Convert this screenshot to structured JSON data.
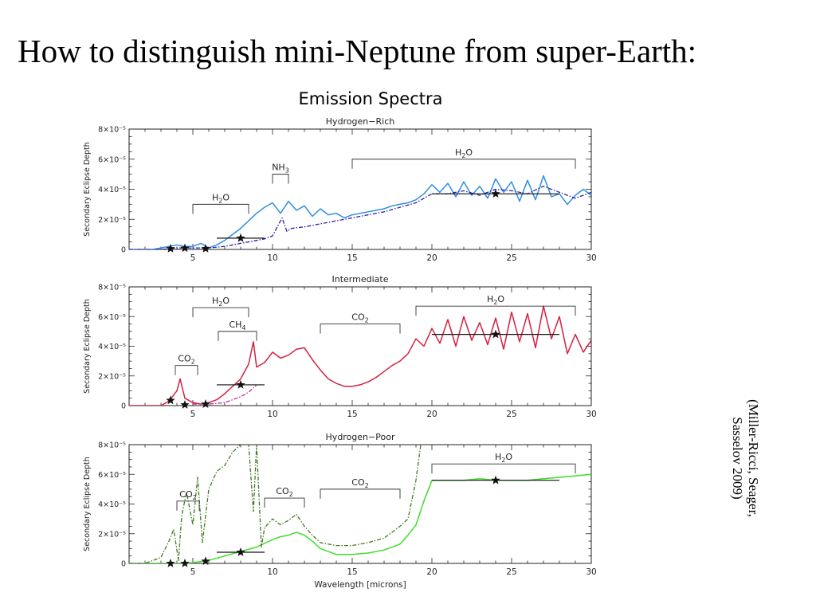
{
  "slide": {
    "title": "How to distinguish mini-Neptune from super-Earth:",
    "figure_title": "Emission Spectra",
    "citation_line1": "(Miller-Ricci, Seager,",
    "citation_line2": "Sasselov  2009)"
  },
  "chart_data": [
    {
      "type": "line",
      "title": "Hydrogen−Rich",
      "ylabel": "Secondary Eclipse Depth",
      "xlabel": "",
      "xlim": [
        1,
        30
      ],
      "ylim": [
        0,
        8e-05
      ],
      "x_ticks": [
        5,
        10,
        15,
        20,
        25,
        30
      ],
      "y_ticks": [
        {
          "value": 0,
          "label": "0"
        },
        {
          "value": 2e-05,
          "label": "2×10⁻⁵"
        },
        {
          "value": 4e-05,
          "label": "4×10⁻⁵"
        },
        {
          "value": 6e-05,
          "label": "6×10⁻⁵"
        },
        {
          "value": 8e-05,
          "label": "8×10⁻⁵"
        }
      ],
      "colors": {
        "primary": "#2e8fe0",
        "secondary": "#2a1fa8"
      },
      "series": [
        {
          "style": "solid",
          "color": "#2e8fe0",
          "x": [
            1.0,
            1.5,
            2.0,
            2.5,
            3.0,
            3.5,
            4.0,
            4.5,
            5.0,
            5.5,
            6.0,
            6.5,
            7.0,
            7.5,
            8.0,
            8.5,
            9.0,
            9.5,
            10.0,
            10.5,
            11.0,
            11.5,
            12.0,
            12.5,
            13.0,
            13.5,
            14.0,
            14.5,
            15.0,
            15.5,
            16.0,
            16.5,
            17.0,
            17.5,
            18.0,
            18.5,
            19.0,
            19.5,
            20.0,
            20.5,
            21.0,
            21.5,
            22.0,
            22.5,
            23.0,
            23.5,
            24.0,
            24.5,
            25.0,
            25.5,
            26.0,
            26.5,
            27.0,
            27.5,
            28.0,
            28.5,
            29.0,
            29.5,
            30.0
          ],
          "y": [
            0,
            0,
            0,
            0,
            1e-06,
            2e-06,
            3e-06,
            2e-06,
            2e-06,
            4e-06,
            1e-06,
            3e-06,
            6e-06,
            1e-05,
            1.4e-05,
            1.9e-05,
            2.4e-05,
            2.8e-05,
            3.1e-05,
            2.4e-05,
            3.2e-05,
            2.6e-05,
            2.9e-05,
            2.2e-05,
            2.7e-05,
            2.3e-05,
            2.4e-05,
            2.1e-05,
            2.3e-05,
            2.4e-05,
            2.5e-05,
            2.6e-05,
            2.7e-05,
            2.9e-05,
            3e-05,
            3.1e-05,
            3.3e-05,
            3.7e-05,
            4.3e-05,
            3.8e-05,
            4.4e-05,
            3.5e-05,
            4.5e-05,
            3.6e-05,
            4.2e-05,
            3.4e-05,
            4.7e-05,
            3.8e-05,
            4.5e-05,
            3.2e-05,
            4.6e-05,
            3.3e-05,
            4.9e-05,
            3.5e-05,
            3.7e-05,
            3e-05,
            3.6e-05,
            4e-05,
            3.6e-05
          ]
        },
        {
          "style": "dashdot",
          "color": "#2a1fa8",
          "x": [
            1.0,
            2.0,
            3.0,
            4.0,
            5.0,
            6.0,
            7.0,
            8.0,
            9.0,
            9.5,
            10.0,
            10.3,
            10.6,
            10.9,
            11.2,
            12.0,
            13.0,
            14.0,
            15.0,
            16.0,
            17.0,
            18.0,
            19.0,
            20.0,
            21.0,
            22.0,
            23.0,
            24.0,
            25.0,
            26.0,
            27.0,
            28.0,
            29.0,
            30.0
          ],
          "y": [
            0,
            0,
            0,
            1e-06,
            1e-06,
            1e-06,
            2e-06,
            4e-06,
            6e-06,
            7e-06,
            9e-06,
            1.5e-05,
            2.1e-05,
            1.2e-05,
            1.4e-05,
            1.5e-05,
            1.7e-05,
            1.9e-05,
            2.1e-05,
            2.3e-05,
            2.5e-05,
            2.8e-05,
            3.1e-05,
            3.7e-05,
            3.7e-05,
            3.9e-05,
            3.6e-05,
            4e-05,
            3.9e-05,
            3.7e-05,
            4.2e-05,
            3.8e-05,
            3.4e-05,
            3.8e-05
          ]
        }
      ],
      "binned_points": [
        {
          "x": 3.6,
          "y": 5e-07,
          "xerr": 0
        },
        {
          "x": 4.5,
          "y": 8e-07,
          "xerr": 0
        },
        {
          "x": 5.8,
          "y": 5e-07,
          "xerr": 0
        },
        {
          "x": 8.0,
          "y": 7.5e-06,
          "xerr": 1.5
        },
        {
          "x": 24.0,
          "y": 3.7e-05,
          "xerr": 4.0
        }
      ],
      "annotations": [
        {
          "base": "H",
          "sub": "2",
          "tail": "O",
          "x1": 5,
          "x2": 8.5,
          "y": 3e-05
        },
        {
          "base": "NH",
          "sub": "3",
          "tail": "",
          "x1": 10,
          "x2": 11,
          "y": 5e-05
        },
        {
          "base": "H",
          "sub": "2",
          "tail": "O",
          "x1": 15,
          "x2": 29,
          "y": 6e-05
        }
      ]
    },
    {
      "type": "line",
      "title": "Intermediate",
      "ylabel": "Secondary Eclipse Depth",
      "xlabel": "",
      "xlim": [
        1,
        30
      ],
      "ylim": [
        0,
        8e-05
      ],
      "x_ticks": [
        5,
        10,
        15,
        20,
        25,
        30
      ],
      "y_ticks": [
        {
          "value": 0,
          "label": "0"
        },
        {
          "value": 2e-05,
          "label": "2×10⁻⁵"
        },
        {
          "value": 4e-05,
          "label": "4×10⁻⁵"
        },
        {
          "value": 6e-05,
          "label": "6×10⁻⁵"
        },
        {
          "value": 8e-05,
          "label": "8×10⁻⁵"
        }
      ],
      "colors": {
        "primary": "#d4203f",
        "secondary": "#c02aa8"
      },
      "series": [
        {
          "style": "solid",
          "color": "#d4203f",
          "x": [
            1.0,
            2.0,
            3.0,
            3.5,
            4.0,
            4.2,
            4.5,
            5.0,
            5.5,
            6.0,
            6.5,
            7.0,
            7.5,
            8.0,
            8.5,
            8.8,
            9.0,
            9.5,
            10.0,
            10.5,
            11.0,
            11.5,
            12.0,
            12.5,
            13.0,
            13.5,
            14.0,
            14.5,
            15.0,
            15.5,
            16.0,
            16.5,
            17.0,
            17.5,
            18.0,
            18.5,
            19.0,
            19.5,
            20.0,
            20.5,
            21.0,
            21.5,
            22.0,
            22.5,
            23.0,
            23.5,
            24.0,
            24.5,
            25.0,
            25.5,
            26.0,
            26.5,
            27.0,
            27.5,
            28.0,
            28.5,
            29.0,
            29.5,
            30.0
          ],
          "y": [
            0,
            0,
            0,
            3e-06,
            1e-05,
            1.8e-05,
            5e-06,
            2e-06,
            1e-06,
            2e-06,
            4e-06,
            8e-06,
            1.3e-05,
            1.8e-05,
            2.8e-05,
            4.3e-05,
            2.6e-05,
            2.9e-05,
            3.6e-05,
            3.2e-05,
            3.4e-05,
            3.8e-05,
            3.9e-05,
            3.1e-05,
            2.4e-05,
            1.8e-05,
            1.5e-05,
            1.3e-05,
            1.3e-05,
            1.4e-05,
            1.6e-05,
            1.9e-05,
            2.3e-05,
            2.7e-05,
            3e-05,
            3.5e-05,
            4.5e-05,
            4e-05,
            5.2e-05,
            4.2e-05,
            5.8e-05,
            4e-05,
            6e-05,
            4.4e-05,
            5.6e-05,
            4.1e-05,
            5.9e-05,
            3.8e-05,
            6.3e-05,
            4.3e-05,
            6.2e-05,
            3.9e-05,
            6.7e-05,
            4.5e-05,
            6e-05,
            3.5e-05,
            4.8e-05,
            3.6e-05,
            4.4e-05
          ]
        },
        {
          "style": "dashdot",
          "color": "#c02aa8",
          "x": [
            5.0,
            6.0,
            7.0,
            7.5,
            8.0,
            8.5,
            8.8,
            9.0
          ],
          "y": [
            1e-06,
            1e-06,
            2e-06,
            4e-06,
            6e-06,
            9e-06,
            1.2e-05,
            1.4e-05
          ]
        }
      ],
      "binned_points": [
        {
          "x": 3.6,
          "y": 3.5e-06,
          "xerr": 0
        },
        {
          "x": 4.5,
          "y": 5e-07,
          "xerr": 0
        },
        {
          "x": 5.8,
          "y": 1e-06,
          "xerr": 0
        },
        {
          "x": 8.0,
          "y": 1.4e-05,
          "xerr": 1.5
        },
        {
          "x": 24.0,
          "y": 4.8e-05,
          "xerr": 4.0
        }
      ],
      "annotations": [
        {
          "base": "CO",
          "sub": "2",
          "tail": "",
          "x1": 3.9,
          "x2": 5.3,
          "y": 2.7e-05
        },
        {
          "base": "H",
          "sub": "2",
          "tail": "O",
          "x1": 5,
          "x2": 8.5,
          "y": 6.6e-05
        },
        {
          "base": "CH",
          "sub": "4",
          "tail": "",
          "x1": 6.6,
          "x2": 9,
          "y": 5e-05
        },
        {
          "base": "CO",
          "sub": "2",
          "tail": "",
          "x1": 13,
          "x2": 18,
          "y": 5.5e-05
        },
        {
          "base": "H",
          "sub": "2",
          "tail": "O",
          "x1": 19,
          "x2": 29,
          "y": 6.7e-05
        }
      ]
    },
    {
      "type": "line",
      "title": "Hydrogen−Poor",
      "ylabel": "Secondary Eclipse Depth",
      "xlabel": "Wavelength [microns]",
      "xlim": [
        1,
        30
      ],
      "ylim": [
        0,
        8e-05
      ],
      "x_ticks": [
        5,
        10,
        15,
        20,
        25,
        30
      ],
      "y_ticks": [
        {
          "value": 0,
          "label": "0"
        },
        {
          "value": 2e-05,
          "label": "2×10⁻⁵"
        },
        {
          "value": 4e-05,
          "label": "4×10⁻⁵"
        },
        {
          "value": 6e-05,
          "label": "6×10⁻⁵"
        },
        {
          "value": 8e-05,
          "label": "8×10⁻⁵"
        }
      ],
      "colors": {
        "primary": "#3fdc2a",
        "secondary": "#3f7a1f"
      },
      "series": [
        {
          "style": "solid",
          "color": "#3fdc2a",
          "x": [
            1.0,
            2.0,
            3.0,
            4.0,
            5.0,
            6.0,
            7.0,
            8.0,
            9.0,
            10.0,
            10.5,
            11.0,
            11.5,
            12.0,
            12.5,
            13.0,
            13.5,
            14.0,
            15.0,
            16.0,
            17.0,
            18.0,
            18.5,
            19.0,
            19.5,
            20.0,
            21.0,
            22.0,
            23.0,
            24.0,
            25.0,
            26.0,
            27.0,
            28.0,
            29.0,
            30.0
          ],
          "y": [
            0,
            0,
            0,
            0,
            5e-07,
            2e-06,
            5e-06,
            8e-06,
            1.1e-05,
            1.6e-05,
            1.8e-05,
            1.9e-05,
            2.1e-05,
            1.9e-05,
            1.5e-05,
            1e-05,
            8e-06,
            6e-06,
            6e-06,
            7e-06,
            9e-06,
            1.3e-05,
            1.9e-05,
            2.6e-05,
            4.2e-05,
            5.6e-05,
            5.6e-05,
            5.6e-05,
            5.7e-05,
            5.6e-05,
            5.6e-05,
            5.6e-05,
            5.7e-05,
            5.8e-05,
            5.9e-05,
            6e-05
          ]
        },
        {
          "style": "dashdot",
          "color": "#3f7a1f",
          "x": [
            1.0,
            2.0,
            3.0,
            3.5,
            3.8,
            4.1,
            4.3,
            4.6,
            5.0,
            5.3,
            5.6,
            6.0,
            6.5,
            7.0,
            7.5,
            8.0,
            8.5,
            8.8,
            9.0,
            9.3,
            9.5,
            10.0,
            10.5,
            11.0,
            11.5,
            12.0,
            12.5,
            13.0,
            14.0,
            15.0,
            16.0,
            17.0,
            18.0,
            18.5,
            19.0,
            19.3
          ],
          "y": [
            0,
            0,
            4e-06,
            1.5e-05,
            2.3e-05,
            2e-06,
            3.2e-05,
            4.8e-05,
            2.6e-05,
            5.8e-05,
            1.4e-05,
            5e-05,
            6.2e-05,
            6.6e-05,
            7.5e-05,
            8e-05,
            8e-05,
            3.5e-05,
            8e-05,
            1.1e-05,
            2.4e-05,
            3e-05,
            2.6e-05,
            2.9e-05,
            3.3e-05,
            2.5e-05,
            1.9e-05,
            1.4e-05,
            1.2e-05,
            1.2e-05,
            1.4e-05,
            1.7e-05,
            2.5e-05,
            3e-05,
            5.6e-05,
            8e-05
          ]
        }
      ],
      "binned_points": [
        {
          "x": 3.6,
          "y": 0.0,
          "xerr": 0
        },
        {
          "x": 4.5,
          "y": 0.0,
          "xerr": 0
        },
        {
          "x": 5.8,
          "y": 1.5e-06,
          "xerr": 0
        },
        {
          "x": 8.0,
          "y": 7.5e-06,
          "xerr": 1.5
        },
        {
          "x": 24.0,
          "y": 5.6e-05,
          "xerr": 4.0
        }
      ],
      "annotations": [
        {
          "base": "CO",
          "sub": "2",
          "tail": "",
          "x1": 4,
          "x2": 5.4,
          "y": 4.2e-05
        },
        {
          "base": "CO",
          "sub": "2",
          "tail": "",
          "x1": 9.5,
          "x2": 12,
          "y": 4.4e-05
        },
        {
          "base": "CO",
          "sub": "2",
          "tail": "",
          "x1": 13,
          "x2": 18,
          "y": 5e-05
        },
        {
          "base": "H",
          "sub": "2",
          "tail": "O",
          "x1": 20,
          "x2": 29,
          "y": 6.7e-05
        }
      ]
    }
  ]
}
